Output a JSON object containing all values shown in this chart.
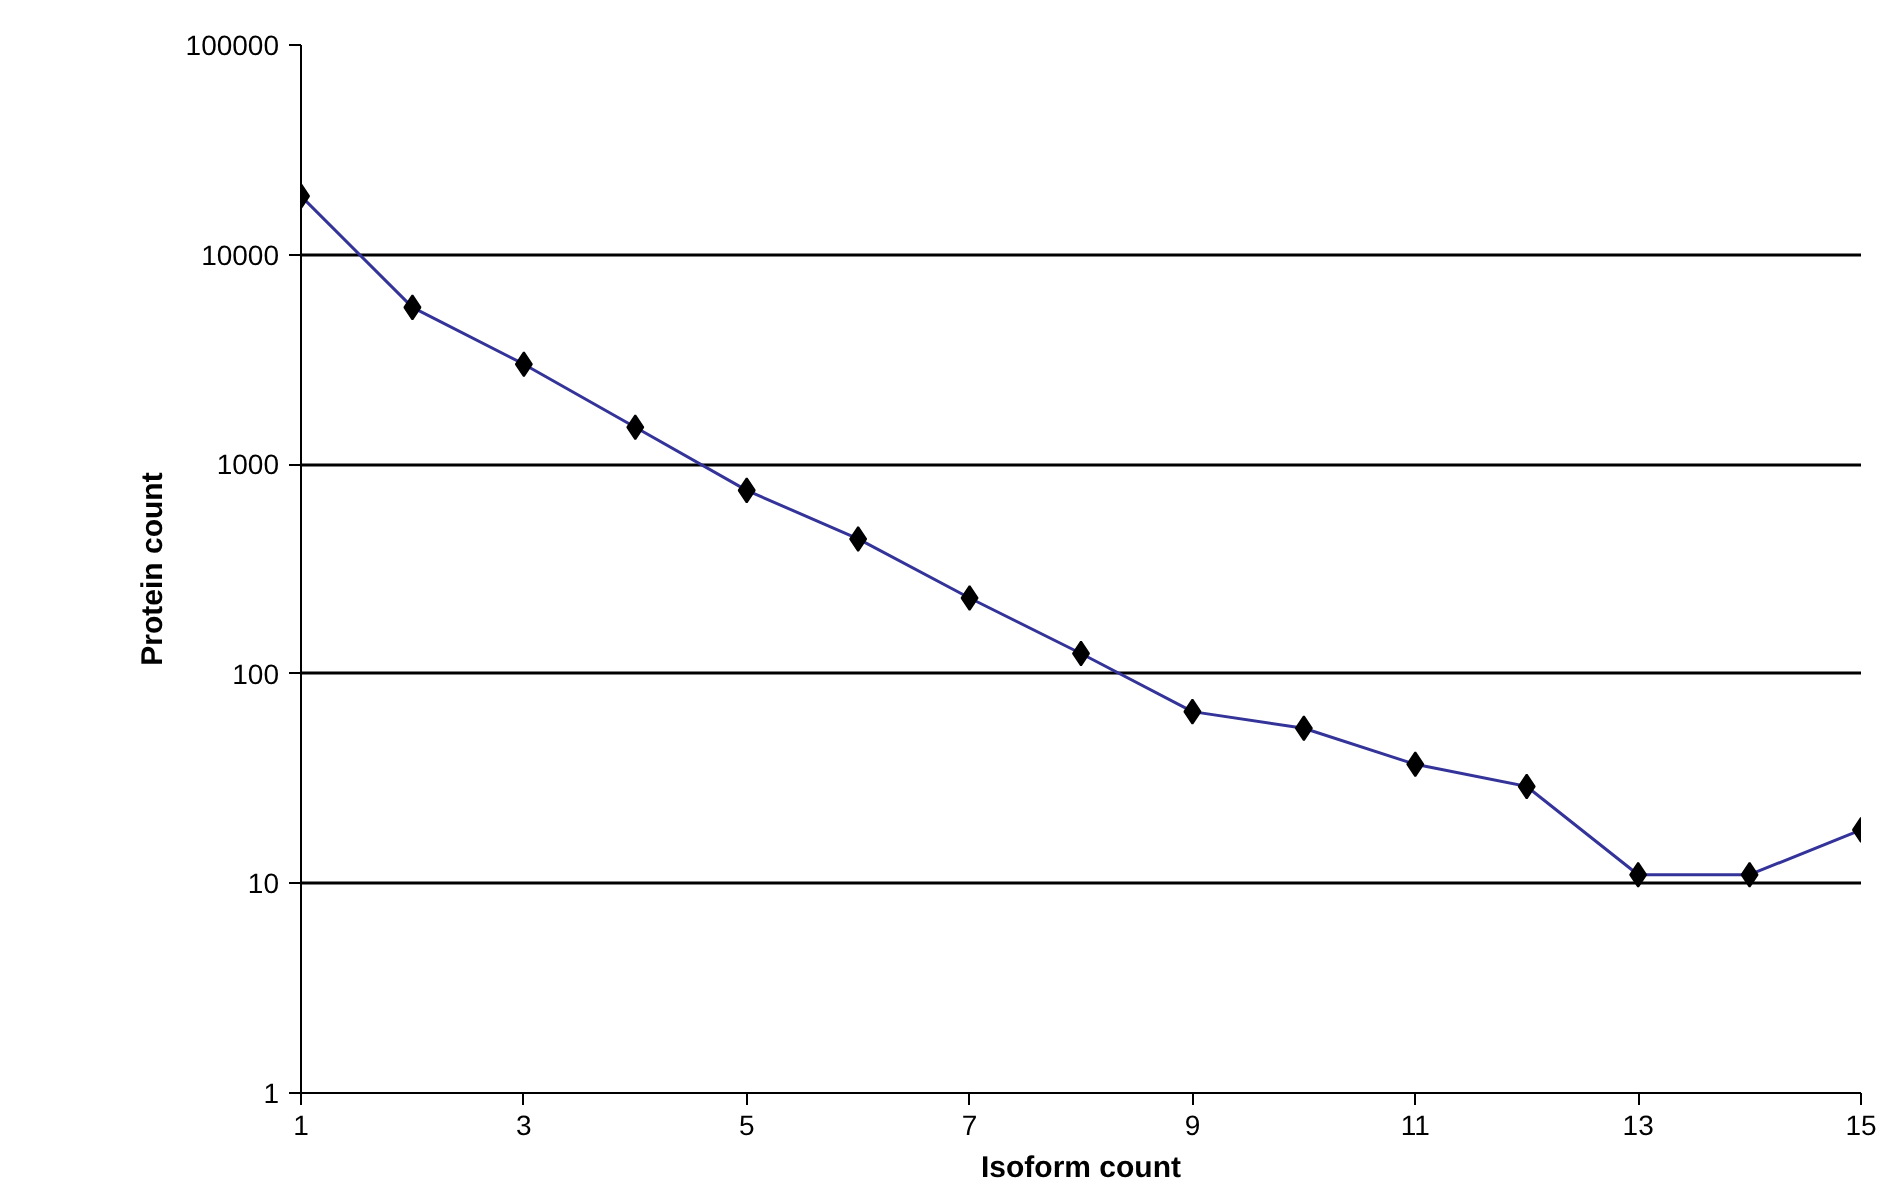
{
  "chart_data": {
    "type": "line",
    "xlabel": "Isoform count",
    "ylabel": "Protein count",
    "x": [
      1,
      2,
      3,
      4,
      5,
      6,
      7,
      8,
      9,
      10,
      11,
      12,
      13,
      14,
      15
    ],
    "series": [
      {
        "color": "#333399",
        "values": [
          19000,
          5600,
          3000,
          1500,
          750,
          440,
          230,
          125,
          66,
          55,
          37,
          29,
          11,
          11,
          18
        ]
      }
    ],
    "log": "y",
    "xlim": [
      1,
      15
    ],
    "xticks": [
      1,
      3,
      5,
      7,
      9,
      11,
      13,
      15
    ],
    "ylim": [
      1,
      100000
    ],
    "yticks": [
      1,
      10,
      100,
      1000,
      10000,
      100000
    ],
    "grid": "y",
    "marker": "diamond",
    "line_style": "solid"
  }
}
